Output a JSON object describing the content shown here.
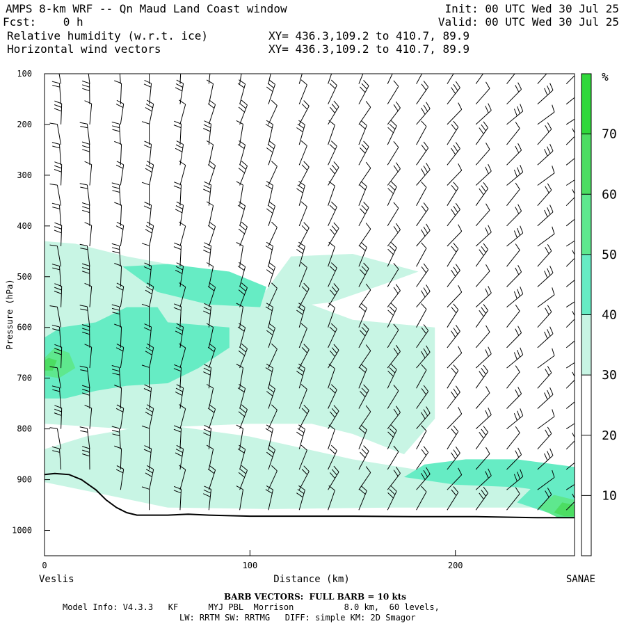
{
  "header": {
    "title": "AMPS 8-km WRF -- Qn Maud Land Coast window",
    "init": "Init: 00 UTC Wed 30 Jul 25",
    "fcst": "Fcst:    0 h",
    "valid": "Valid: 00 UTC Wed 30 Jul 25",
    "field1": "Relative humidity (w.r.t. ice)",
    "field2": "Horizontal wind vectors",
    "xy1": "XY= 436.3,109.2 to 410.7, 89.9",
    "xy2": "XY= 436.3,109.2 to 410.7, 89.9"
  },
  "footer": {
    "barb_note": "BARB VECTORS:  FULL BARB = 10 kts",
    "model_info": "Model Info: V4.3.3   KF      MYJ PBL  Morrison          8.0 km,  60 levels,",
    "physics": "LW: RRTM SW: RRTMG   DIFF: simple KM: 2D Smagor"
  },
  "colors": {
    "band_30_40": "#c8f5e4",
    "band_40_50": "#66ecc4",
    "band_50_60": "#5ee88e",
    "band_60_70": "#4cdd62",
    "band_70_up": "#2fd83a",
    "terrain": "#000000",
    "barbs": "#000000"
  },
  "chart_data": {
    "type": "cross-section",
    "xlabel": "Distance (km)",
    "ylabel": "Pressure (hPa)",
    "xlim": [
      0,
      258
    ],
    "ylim": [
      1050,
      100
    ],
    "x_ticks": [
      0,
      100,
      200
    ],
    "y_ticks": [
      100,
      200,
      300,
      400,
      500,
      600,
      700,
      800,
      900,
      1000
    ],
    "left_endpoint": "Veslis",
    "right_endpoint": "SANAE",
    "colorbar": {
      "unit": "%",
      "levels": [
        10,
        20,
        30,
        40,
        50,
        60,
        70
      ],
      "fill_colors": [
        "#ffffff",
        "#ffffff",
        "#ffffff",
        "#c8f5e4",
        "#66ecc4",
        "#5ee88e",
        "#4cdd62",
        "#2fd83a"
      ]
    },
    "terrain_surface": {
      "x": [
        0,
        5,
        12,
        18,
        25,
        30,
        35,
        40,
        45,
        50,
        60,
        70,
        80,
        100,
        120,
        150,
        180,
        210,
        240,
        258
      ],
      "p": [
        890,
        888,
        890,
        900,
        920,
        940,
        955,
        965,
        970,
        970,
        970,
        968,
        970,
        972,
        972,
        972,
        973,
        973,
        975,
        975
      ]
    },
    "rh_regions": [
      {
        "level": 30,
        "x": [
          0,
          60,
          110,
          170,
          230,
          258,
          258,
          150,
          100,
          55,
          20,
          0
        ],
        "p": [
          905,
          955,
          958,
          955,
          955,
          955,
          930,
          860,
          815,
          790,
          815,
          840
        ]
      },
      {
        "level": 30,
        "x": [
          0,
          40,
          100,
          130,
          150,
          175,
          190,
          190,
          150,
          120,
          100,
          80,
          40,
          15,
          0
        ],
        "p": [
          790,
          800,
          790,
          790,
          810,
          850,
          780,
          600,
          585,
          540,
          520,
          490,
          460,
          435,
          430
        ]
      },
      {
        "level": 30,
        "x": [
          100,
          140,
          165,
          182,
          150,
          120
        ],
        "p": [
          570,
          550,
          515,
          490,
          455,
          460
        ]
      },
      {
        "level": 40,
        "x": [
          0,
          10,
          25,
          40,
          60,
          75,
          90,
          90,
          60,
          55,
          40,
          25,
          8,
          0
        ],
        "p": [
          740,
          740,
          725,
          715,
          710,
          680,
          640,
          600,
          590,
          560,
          560,
          590,
          600,
          620
        ]
      },
      {
        "level": 40,
        "x": [
          38,
          55,
          80,
          105,
          108,
          90,
          60
        ],
        "p": [
          480,
          530,
          555,
          560,
          520,
          490,
          475
        ]
      },
      {
        "level": 40,
        "x": [
          175,
          200,
          230,
          258,
          258,
          230,
          205,
          185
        ],
        "p": [
          895,
          910,
          915,
          930,
          875,
          860,
          860,
          870
        ]
      },
      {
        "level": 40,
        "x": [
          230,
          245,
          258,
          258,
          240
        ],
        "p": [
          945,
          965,
          970,
          920,
          905
        ]
      },
      {
        "level": 50,
        "x": [
          0,
          7,
          15,
          12,
          5,
          0
        ],
        "p": [
          695,
          700,
          680,
          650,
          640,
          660
        ]
      },
      {
        "level": 50,
        "x": [
          240,
          250,
          258,
          258,
          248
        ],
        "p": [
          955,
          975,
          975,
          940,
          930
        ]
      },
      {
        "level": 60,
        "x": [
          0,
          4,
          6,
          2,
          0
        ],
        "p": [
          685,
          685,
          665,
          660,
          665
        ]
      },
      {
        "level": 60,
        "x": [
          248,
          253,
          258,
          258,
          252
        ],
        "p": [
          965,
          972,
          972,
          950,
          945
        ]
      }
    ],
    "wind_barbs": {
      "note": "Barbs drawn at model points along the section; full barb = 10 kts",
      "columns_x_km": [
        8,
        22,
        37,
        51,
        66,
        80,
        95,
        109,
        124,
        138,
        153,
        167,
        181,
        196,
        210,
        225,
        240,
        254
      ],
      "levels_hPa": [
        120,
        160,
        200,
        240,
        280,
        320,
        360,
        400,
        440,
        480,
        520,
        560,
        600,
        640,
        680,
        720,
        760,
        800,
        840,
        880,
        920,
        960
      ]
    }
  }
}
